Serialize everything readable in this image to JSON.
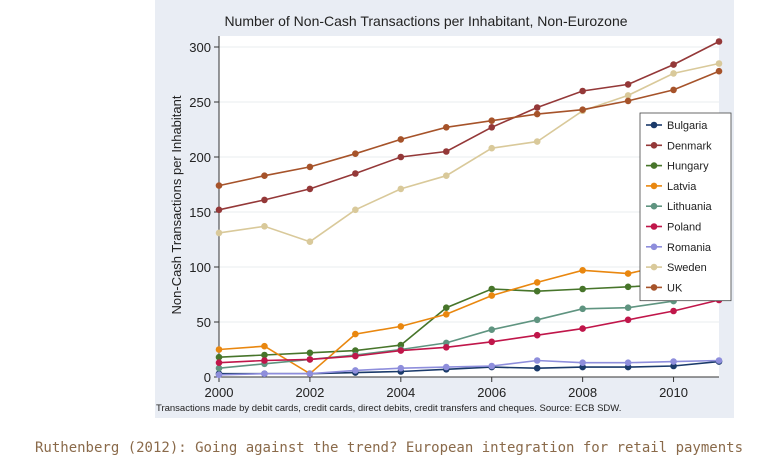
{
  "chart_data": {
    "type": "line",
    "title": "Number of Non-Cash Transactions per Inhabitant, Non-Eurozone",
    "ylabel": "Non-Cash Transactions per Inhabitant",
    "xlabel": "",
    "note": "Transactions made by debit cards, credit cards, direct debits, credit transfers and cheques. Source: ECB SDW.",
    "xlim": [
      2000,
      2011
    ],
    "ylim": [
      0,
      310
    ],
    "x_ticks": [
      2000,
      2002,
      2004,
      2006,
      2008,
      2010
    ],
    "y_ticks": [
      0,
      50,
      100,
      150,
      200,
      250,
      300
    ],
    "grid": true,
    "legend_position": "right",
    "x": [
      2000,
      2001,
      2002,
      2003,
      2004,
      2005,
      2006,
      2007,
      2008,
      2009,
      2010,
      2011
    ],
    "series": [
      {
        "name": "Bulgaria",
        "color": "#1a3a6a",
        "values": [
          3,
          3,
          3,
          4,
          5,
          7,
          9,
          8,
          9,
          9,
          10,
          14
        ]
      },
      {
        "name": "Denmark",
        "color": "#943838",
        "values": [
          152,
          161,
          171,
          185,
          200,
          205,
          227,
          245,
          260,
          266,
          284,
          305
        ]
      },
      {
        "name": "Hungary",
        "color": "#47752a",
        "values": [
          18,
          20,
          22,
          24,
          29,
          63,
          80,
          78,
          80,
          82,
          84,
          84
        ]
      },
      {
        "name": "Latvia",
        "color": "#e9870f",
        "values": [
          25,
          28,
          3,
          39,
          46,
          57,
          74,
          86,
          97,
          94,
          103,
          112
        ]
      },
      {
        "name": "Lithuania",
        "color": "#5f9480",
        "values": [
          8,
          12,
          16,
          20,
          25,
          31,
          43,
          52,
          62,
          63,
          69,
          86
        ]
      },
      {
        "name": "Poland",
        "color": "#c0164a",
        "values": [
          13,
          15,
          16,
          19,
          24,
          27,
          32,
          38,
          44,
          52,
          60,
          70
        ]
      },
      {
        "name": "Romania",
        "color": "#8e8edc",
        "values": [
          2,
          3,
          3,
          6,
          8,
          9,
          10,
          15,
          13,
          13,
          14,
          15
        ]
      },
      {
        "name": "Sweden",
        "color": "#d9c99a",
        "values": [
          131,
          137,
          123,
          152,
          171,
          183,
          208,
          214,
          242,
          256,
          276,
          285
        ]
      },
      {
        "name": "UK",
        "color": "#a6532a",
        "values": [
          174,
          183,
          191,
          203,
          216,
          227,
          233,
          239,
          243,
          251,
          261,
          278
        ]
      }
    ]
  },
  "caption": "Ruthenberg (2012): Going against the trend? European integration  for retail payments"
}
